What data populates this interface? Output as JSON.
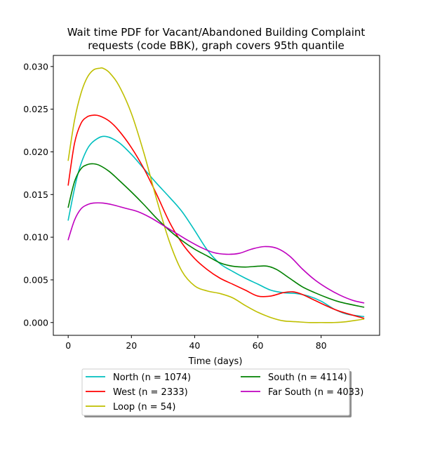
{
  "chart_data": {
    "type": "line",
    "title": "Wait time PDF for Vacant/Abandoned Building Complaint requests (code BBK), graph covers 95th quantile",
    "title_lines": [
      "Wait time PDF for Vacant/Abandoned Building Complaint",
      "requests (code BBK), graph covers 95th quantile"
    ],
    "xlabel": "Time (days)",
    "ylabel": "",
    "xlim": [
      -4.7,
      98.5
    ],
    "ylim": [
      -0.0015,
      0.0313
    ],
    "x_ticks": [
      0,
      20,
      40,
      60,
      80
    ],
    "y_ticks": [
      0.0,
      0.005,
      0.01,
      0.015,
      0.02,
      0.025,
      0.03
    ],
    "y_tick_labels": [
      "0.000",
      "0.005",
      "0.010",
      "0.015",
      "0.020",
      "0.025",
      "0.030"
    ],
    "grid": false,
    "legend_placement": "below",
    "legend_columns": 2,
    "series": [
      {
        "name": "North (n = 1074)",
        "color": "#00bfbf",
        "x": [
          0,
          3,
          6,
          9,
          12,
          16,
          20,
          24,
          28,
          32,
          36,
          40,
          44,
          48,
          52,
          56,
          60,
          64,
          68,
          72,
          76,
          80,
          84,
          88,
          93.5
        ],
        "y": [
          0.012,
          0.0173,
          0.0203,
          0.0215,
          0.0218,
          0.0211,
          0.0197,
          0.018,
          0.0163,
          0.0147,
          0.013,
          0.0108,
          0.0085,
          0.0069,
          0.006,
          0.0052,
          0.0045,
          0.0038,
          0.0035,
          0.0034,
          0.0031,
          0.0025,
          0.0016,
          0.001,
          0.0007
        ]
      },
      {
        "name": "West (n = 2333)",
        "color": "#ff0000",
        "x": [
          0,
          2,
          4,
          6,
          8,
          10,
          13,
          16,
          20,
          24,
          28,
          32,
          36,
          40,
          44,
          48,
          52,
          56,
          60,
          64,
          68,
          71,
          74,
          78,
          82,
          86,
          93.5
        ],
        "y": [
          0.0161,
          0.021,
          0.0233,
          0.0241,
          0.0243,
          0.0242,
          0.0236,
          0.0225,
          0.0205,
          0.018,
          0.015,
          0.0118,
          0.0093,
          0.0075,
          0.0062,
          0.0052,
          0.0045,
          0.0038,
          0.0031,
          0.0031,
          0.0035,
          0.0036,
          0.0033,
          0.0026,
          0.0019,
          0.0013,
          0.0005
        ]
      },
      {
        "name": "Loop (n = 54)",
        "color": "#bfbf00",
        "x": [
          0,
          2,
          4,
          6,
          8,
          10,
          11,
          13,
          16,
          20,
          24,
          28,
          32,
          36,
          40,
          44,
          48,
          52,
          56,
          60,
          64,
          68,
          72,
          76,
          80,
          84,
          88,
          93.5
        ],
        "y": [
          0.019,
          0.0237,
          0.0268,
          0.0287,
          0.0296,
          0.0298,
          0.0298,
          0.0293,
          0.0278,
          0.0245,
          0.0198,
          0.0144,
          0.0095,
          0.006,
          0.0043,
          0.0037,
          0.0034,
          0.0029,
          0.002,
          0.0012,
          0.0006,
          0.0002,
          0.0001,
          0.0,
          0.0,
          0.0,
          0.0001,
          0.0004
        ]
      },
      {
        "name": "South (n = 4114)",
        "color": "#008000",
        "x": [
          0,
          2,
          4,
          6,
          8,
          10,
          13,
          16,
          20,
          24,
          28,
          32,
          36,
          40,
          44,
          48,
          52,
          56,
          60,
          63,
          66,
          70,
          74,
          78,
          82,
          86,
          93.5
        ],
        "y": [
          0.0135,
          0.0165,
          0.018,
          0.0185,
          0.0186,
          0.0184,
          0.0177,
          0.0167,
          0.0153,
          0.0138,
          0.0122,
          0.0108,
          0.0096,
          0.0086,
          0.0078,
          0.007,
          0.0066,
          0.0065,
          0.0066,
          0.0066,
          0.0062,
          0.0052,
          0.0042,
          0.0035,
          0.0029,
          0.0024,
          0.0018
        ]
      },
      {
        "name": "Far South (n = 4033)",
        "color": "#bf00bf",
        "x": [
          0,
          2,
          4,
          6,
          8,
          11,
          14,
          18,
          22,
          26,
          30,
          34,
          38,
          42,
          46,
          50,
          54,
          58,
          62,
          66,
          70,
          74,
          78,
          82,
          86,
          90,
          93.5
        ],
        "y": [
          0.0097,
          0.012,
          0.0133,
          0.0138,
          0.014,
          0.014,
          0.0138,
          0.0134,
          0.013,
          0.0123,
          0.0114,
          0.0105,
          0.0096,
          0.0088,
          0.0082,
          0.008,
          0.0081,
          0.0086,
          0.0089,
          0.0087,
          0.0078,
          0.0063,
          0.005,
          0.004,
          0.0032,
          0.0026,
          0.0023
        ]
      }
    ]
  }
}
